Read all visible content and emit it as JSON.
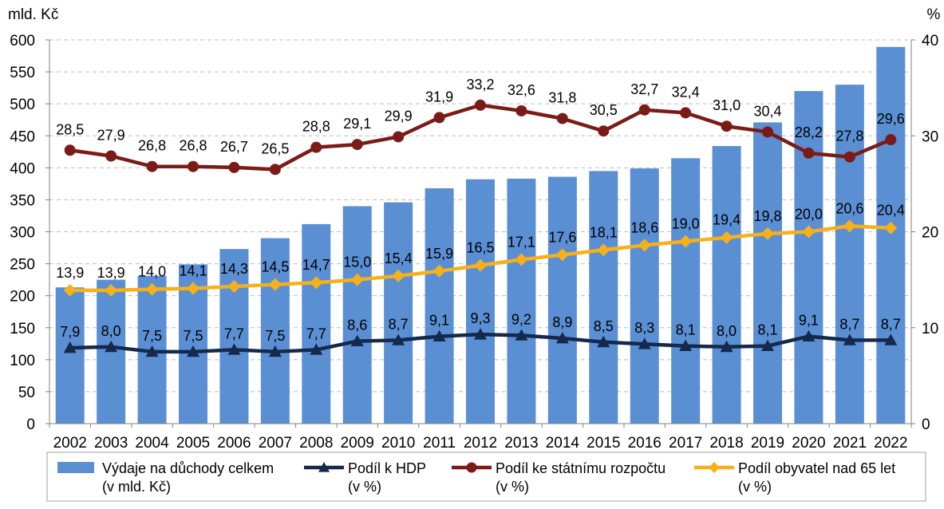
{
  "chart_data": {
    "type": "bar",
    "categories": [
      "2002",
      "2003",
      "2004",
      "2005",
      "2006",
      "2007",
      "2008",
      "2009",
      "2010",
      "2011",
      "2012",
      "2013",
      "2014",
      "2015",
      "2016",
      "2017",
      "2018",
      "2019",
      "2020",
      "2021",
      "2022"
    ],
    "y_left": {
      "label": "mld. Kč",
      "range": [
        0,
        600
      ],
      "ticks": [
        0,
        50,
        100,
        150,
        200,
        250,
        300,
        350,
        400,
        450,
        500,
        550,
        600
      ]
    },
    "y_right": {
      "label": "%",
      "range": [
        0,
        40
      ],
      "ticks": [
        0,
        10,
        20,
        30,
        40
      ]
    },
    "grid": true,
    "legend_position": "bottom",
    "series": [
      {
        "name": "Výdaje na důchody celkem",
        "name_line2": "(v mld. Kč)",
        "kind": "bar",
        "axis": "left",
        "color": "#5B8FD4",
        "values": [
          213,
          225,
          231,
          249,
          273,
          290,
          312,
          340,
          346,
          368,
          382,
          383,
          386,
          395,
          399,
          415,
          434,
          471,
          520,
          530,
          589
        ]
      },
      {
        "name": "Podíl k HDP",
        "name_line2": "(v %)",
        "kind": "line",
        "axis": "right",
        "color": "#14294B",
        "marker": "triangle",
        "values": [
          7.9,
          8.0,
          7.5,
          7.5,
          7.7,
          7.5,
          7.7,
          8.6,
          8.7,
          9.1,
          9.3,
          9.2,
          8.9,
          8.5,
          8.3,
          8.1,
          8.0,
          8.1,
          9.1,
          8.7,
          8.7
        ],
        "labels": [
          "7,9",
          "8,0",
          "7,5",
          "7,5",
          "7,7",
          "7,5",
          "7,7",
          "8,6",
          "8,7",
          "9,1",
          "9,3",
          "9,2",
          "8,9",
          "8,5",
          "8,3",
          "8,1",
          "8,0",
          "8,1",
          "9,1",
          "8,7",
          "8,7"
        ]
      },
      {
        "name": "Podíl ke státnímu rozpočtu",
        "name_line2": "(v %)",
        "kind": "line",
        "axis": "right",
        "color": "#7B1B17",
        "marker": "circle",
        "values": [
          28.5,
          27.9,
          26.8,
          26.8,
          26.7,
          26.5,
          28.8,
          29.1,
          29.9,
          31.9,
          33.2,
          32.6,
          31.8,
          30.5,
          32.7,
          32.4,
          31.0,
          30.4,
          28.2,
          27.8,
          29.6
        ],
        "labels": [
          "28,5",
          "27,9",
          "26,8",
          "26,8",
          "26,7",
          "26,5",
          "28,8",
          "29,1",
          "29,9",
          "31,9",
          "33,2",
          "32,6",
          "31,8",
          "30,5",
          "32,7",
          "32,4",
          "31,0",
          "30,4",
          "28,2",
          "27,8",
          "29,6"
        ]
      },
      {
        "name": "Podíl obyvatel nad 65 let",
        "name_line2": "(v %)",
        "kind": "line",
        "axis": "right",
        "color": "#F5B01A",
        "marker": "diamond",
        "values": [
          13.9,
          13.9,
          14.0,
          14.1,
          14.3,
          14.5,
          14.7,
          15.0,
          15.4,
          15.9,
          16.5,
          17.1,
          17.6,
          18.1,
          18.6,
          19.0,
          19.4,
          19.8,
          20.0,
          20.6,
          20.4
        ],
        "labels": [
          "13,9",
          "13,9",
          "14,0",
          "14,1",
          "14,3",
          "14,5",
          "14,7",
          "15,0",
          "15,4",
          "15,9",
          "16,5",
          "17,1",
          "17,6",
          "18,1",
          "18,6",
          "19,0",
          "19,4",
          "19,8",
          "20,0",
          "20,6",
          "20,4"
        ]
      }
    ]
  }
}
